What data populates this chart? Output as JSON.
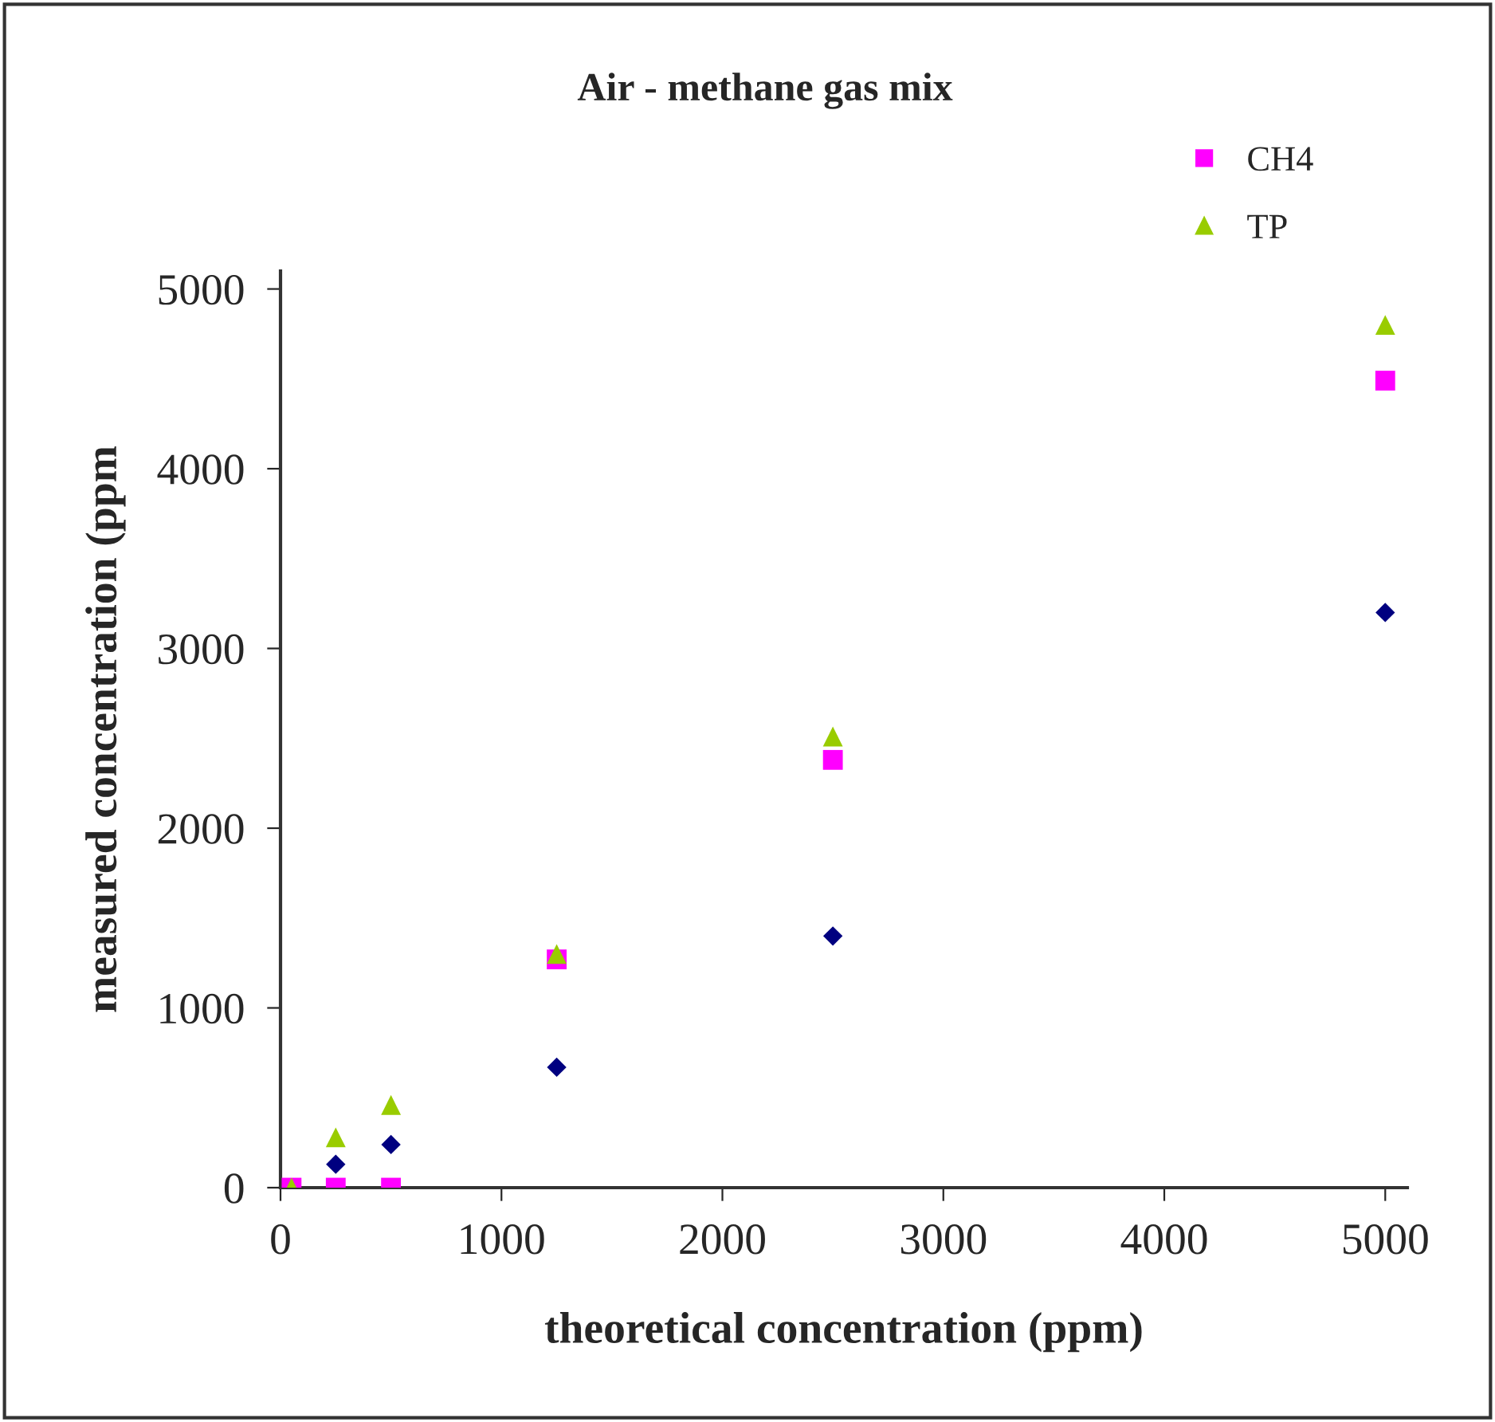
{
  "chart_data": {
    "type": "scatter",
    "title": "Air - methane gas mix",
    "xlabel": "theoretical concentration (ppm)",
    "ylabel": "measured concentration (ppm",
    "x": [
      50,
      250,
      500,
      1250,
      2500,
      5000
    ],
    "series": [
      {
        "color": "#000080",
        "marker": "diamond",
        "values": [
          null,
          130,
          240,
          670,
          1400,
          3200
        ]
      },
      {
        "name": "CH4",
        "color": "#ff00ff",
        "marker": "square",
        "values": [
          0,
          0,
          0,
          1270,
          2380,
          4490
        ]
      },
      {
        "name": "TP",
        "color": "#99cc00",
        "marker": "triangle",
        "values": [
          0,
          280,
          460,
          1300,
          2510,
          4800
        ]
      }
    ],
    "xlim": [
      0,
      5100
    ],
    "xticks": [
      0,
      1000,
      2000,
      3000,
      4000,
      5000
    ],
    "ylim": [
      0,
      5100
    ],
    "yticks": [
      0,
      1000,
      2000,
      3000,
      4000,
      5000
    ],
    "grid": false,
    "legend": "top right"
  }
}
